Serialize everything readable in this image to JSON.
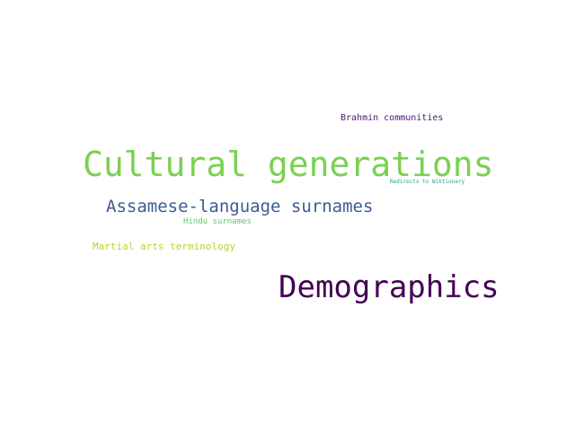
{
  "words": [
    {
      "text": "Brahmin communities",
      "color": "#4a1a6b"
    },
    {
      "text": "Cultural generations",
      "color": "#7ad151"
    },
    {
      "text": "Redirects to Wiktionary",
      "color": "#2a9d8f"
    },
    {
      "text": "Assamese-language surnames",
      "color": "#3b5b92"
    },
    {
      "text": "Hindu surnames",
      "color": "#5ec962"
    },
    {
      "text": "Martial arts terminology",
      "color": "#b8d430"
    },
    {
      "text": "Demographics",
      "color": "#440154"
    }
  ]
}
